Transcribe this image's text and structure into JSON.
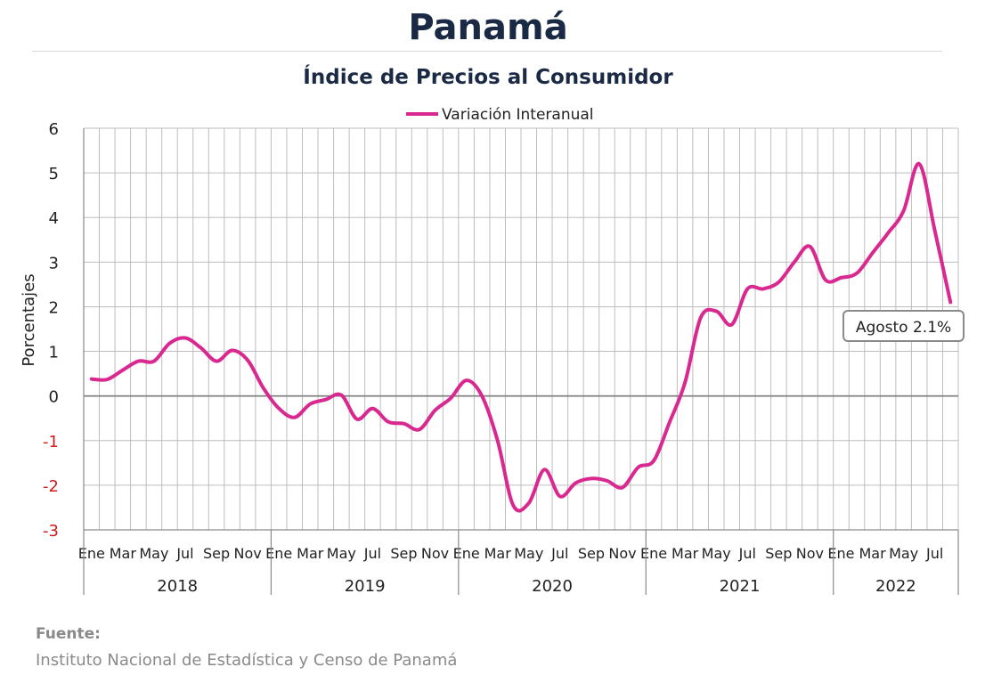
{
  "header": {
    "title": "Panamá",
    "subtitle": "Índice de Precios al Consumidor"
  },
  "source": {
    "label": "Fuente:",
    "text": "Instituto Nacional de Estadística y Censo de Panamá"
  },
  "colors": {
    "series": "#d9288f",
    "title": "#1b2a44",
    "negative_tick": "#d11a1a"
  },
  "chart_data": {
    "type": "line",
    "ylabel": "Porcentajes",
    "ylim": [
      -3,
      6
    ],
    "yticks": [
      6,
      5,
      4,
      3,
      2,
      1,
      0,
      -1,
      -2,
      -3
    ],
    "grid": true,
    "legend": "top",
    "years": [
      "2018",
      "2019",
      "2020",
      "2021",
      "2022"
    ],
    "month_ticks": [
      "Ene",
      "Mar",
      "May",
      "Jul",
      "Sep",
      "Nov"
    ],
    "series": [
      {
        "name": "Variación Interanual",
        "values": [
          0.38,
          0.37,
          0.58,
          0.78,
          0.78,
          1.18,
          1.3,
          1.08,
          0.78,
          1.02,
          0.8,
          0.18,
          -0.28,
          -0.48,
          -0.18,
          -0.08,
          0.02,
          -0.52,
          -0.28,
          -0.58,
          -0.62,
          -0.75,
          -0.32,
          -0.05,
          0.35,
          0.0,
          -1.0,
          -2.45,
          -2.4,
          -1.65,
          -2.25,
          -1.95,
          -1.85,
          -1.9,
          -2.05,
          -1.6,
          -1.45,
          -0.6,
          0.3,
          1.75,
          1.9,
          1.6,
          2.4,
          2.4,
          2.55,
          3.0,
          3.35,
          2.6,
          2.65,
          2.75,
          3.2,
          3.65,
          4.15,
          5.2,
          3.7,
          2.1
        ]
      }
    ],
    "annotation": "Agosto 2.1%"
  }
}
